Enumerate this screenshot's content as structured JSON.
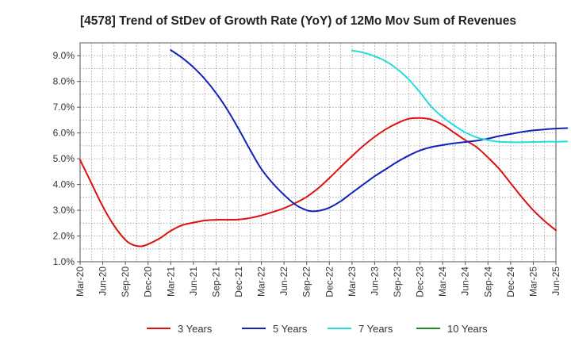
{
  "chart_data": {
    "type": "line",
    "title": "[4578]  Trend of StDev of Growth Rate (YoY) of 12Mo Mov Sum of Revenues",
    "xlabel": "",
    "ylabel": "",
    "ylim": [
      1.0,
      9.5
    ],
    "yticks": [
      1.0,
      2.0,
      3.0,
      4.0,
      5.0,
      6.0,
      7.0,
      8.0,
      9.0
    ],
    "ytick_labels": [
      "1.0%",
      "2.0%",
      "3.0%",
      "4.0%",
      "5.0%",
      "6.0%",
      "7.0%",
      "8.0%",
      "9.0%"
    ],
    "x_categories": [
      "Mar-20",
      "Jun-20",
      "Sep-20",
      "Dec-20",
      "Mar-21",
      "Jun-21",
      "Sep-21",
      "Dec-21",
      "Mar-22",
      "Jun-22",
      "Sep-22",
      "Dec-22",
      "Mar-23",
      "Jun-23",
      "Sep-23",
      "Dec-23",
      "Mar-24",
      "Jun-24",
      "Sep-24",
      "Dec-24",
      "Mar-25",
      "Jun-25"
    ],
    "grid": true,
    "legend_position": "bottom",
    "series": [
      {
        "name": "3 Years",
        "color": "#dd1111",
        "values": [
          [
            0,
            4.95
          ],
          [
            0.5,
            4.05
          ],
          [
            1,
            3.15
          ],
          [
            1.5,
            2.4
          ],
          [
            2,
            1.85
          ],
          [
            2.35,
            1.65
          ],
          [
            2.7,
            1.6
          ],
          [
            3,
            1.68
          ],
          [
            3.5,
            1.9
          ],
          [
            4,
            2.2
          ],
          [
            4.5,
            2.42
          ],
          [
            5,
            2.52
          ],
          [
            5.5,
            2.6
          ],
          [
            6,
            2.63
          ],
          [
            6.5,
            2.63
          ],
          [
            7,
            2.64
          ],
          [
            7.5,
            2.7
          ],
          [
            8,
            2.8
          ],
          [
            8.5,
            2.93
          ],
          [
            9,
            3.08
          ],
          [
            9.5,
            3.28
          ],
          [
            10,
            3.52
          ],
          [
            10.5,
            3.85
          ],
          [
            11,
            4.25
          ],
          [
            11.5,
            4.68
          ],
          [
            12,
            5.1
          ],
          [
            12.5,
            5.5
          ],
          [
            13,
            5.85
          ],
          [
            13.5,
            6.15
          ],
          [
            14,
            6.38
          ],
          [
            14.5,
            6.55
          ],
          [
            15,
            6.58
          ],
          [
            15.5,
            6.52
          ],
          [
            16,
            6.32
          ],
          [
            16.5,
            6.02
          ],
          [
            17,
            5.72
          ],
          [
            17.5,
            5.45
          ],
          [
            18,
            5.05
          ],
          [
            18.5,
            4.6
          ],
          [
            19,
            4.05
          ],
          [
            19.5,
            3.5
          ],
          [
            20,
            3.0
          ],
          [
            20.5,
            2.58
          ],
          [
            21,
            2.22
          ]
        ]
      },
      {
        "name": "5 Years",
        "color": "#1122bb",
        "values": [
          [
            4,
            9.22
          ],
          [
            4.5,
            8.92
          ],
          [
            5,
            8.55
          ],
          [
            5.5,
            8.1
          ],
          [
            6,
            7.55
          ],
          [
            6.5,
            6.9
          ],
          [
            7,
            6.15
          ],
          [
            7.5,
            5.35
          ],
          [
            8,
            4.6
          ],
          [
            8.5,
            4.05
          ],
          [
            9,
            3.6
          ],
          [
            9.5,
            3.22
          ],
          [
            10,
            3.0
          ],
          [
            10.3,
            2.96
          ],
          [
            10.6,
            2.99
          ],
          [
            11,
            3.1
          ],
          [
            11.5,
            3.35
          ],
          [
            12,
            3.68
          ],
          [
            12.5,
            4.0
          ],
          [
            13,
            4.32
          ],
          [
            13.5,
            4.6
          ],
          [
            14,
            4.88
          ],
          [
            14.5,
            5.12
          ],
          [
            15,
            5.32
          ],
          [
            15.5,
            5.45
          ],
          [
            16,
            5.53
          ],
          [
            16.5,
            5.6
          ],
          [
            17,
            5.65
          ],
          [
            17.5,
            5.7
          ],
          [
            18,
            5.78
          ],
          [
            18.5,
            5.88
          ],
          [
            19,
            5.96
          ],
          [
            19.5,
            6.04
          ],
          [
            20,
            6.1
          ],
          [
            20.5,
            6.14
          ],
          [
            21,
            6.17
          ],
          [
            21.5,
            6.19
          ]
        ]
      },
      {
        "name": "7 Years",
        "color": "#22dddd",
        "values": [
          [
            12,
            9.2
          ],
          [
            12.5,
            9.12
          ],
          [
            13,
            8.98
          ],
          [
            13.5,
            8.78
          ],
          [
            14,
            8.48
          ],
          [
            14.5,
            8.08
          ],
          [
            15,
            7.58
          ],
          [
            15.5,
            7.02
          ],
          [
            16,
            6.62
          ],
          [
            16.5,
            6.3
          ],
          [
            17,
            6.02
          ],
          [
            17.5,
            5.83
          ],
          [
            18,
            5.72
          ],
          [
            18.5,
            5.66
          ],
          [
            19,
            5.64
          ],
          [
            19.5,
            5.64
          ],
          [
            20,
            5.65
          ],
          [
            20.5,
            5.66
          ],
          [
            21,
            5.66
          ],
          [
            21.5,
            5.67
          ]
        ]
      },
      {
        "name": "10 Years",
        "color": "#228822",
        "values": []
      }
    ]
  }
}
